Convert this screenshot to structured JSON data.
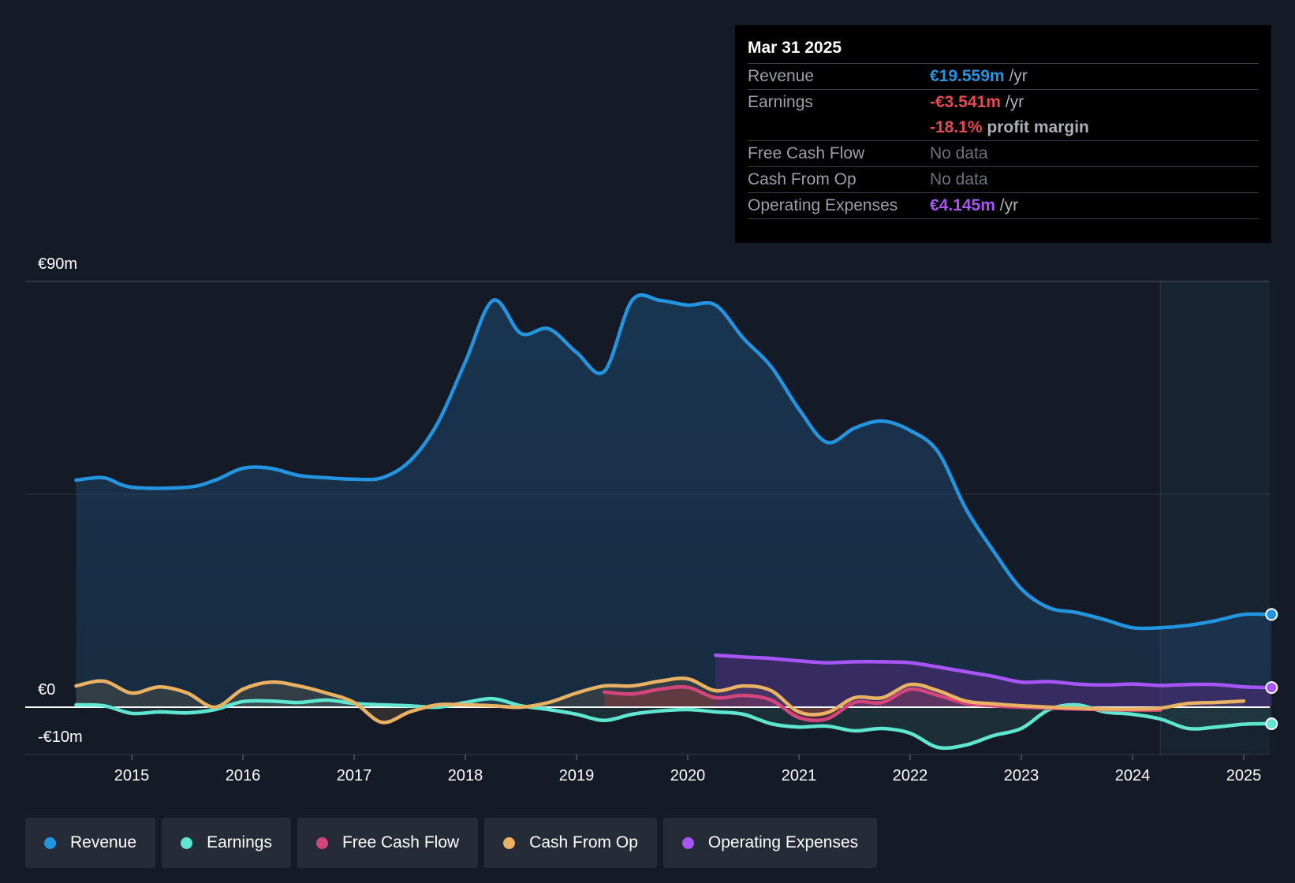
{
  "tooltip": {
    "date": "Mar 31 2025",
    "rows": [
      {
        "label": "Revenue",
        "value": "€19.559m",
        "unit": "/yr"
      },
      {
        "label": "Earnings",
        "value": "-€3.541m",
        "unit": "/yr"
      },
      {
        "label": "",
        "value": "-18.1%",
        "unit": "profit margin"
      },
      {
        "label": "Free Cash Flow",
        "value": "No data"
      },
      {
        "label": "Cash From Op",
        "value": "No data"
      },
      {
        "label": "Operating Expenses",
        "value": "€4.145m",
        "unit": "/yr"
      }
    ]
  },
  "legend": [
    {
      "label": "Revenue",
      "color": "#2394df"
    },
    {
      "label": "Earnings",
      "color": "#5ee6d0"
    },
    {
      "label": "Free Cash Flow",
      "color": "#d4457c"
    },
    {
      "label": "Cash From Op",
      "color": "#e9b262"
    },
    {
      "label": "Operating Expenses",
      "color": "#a855f7"
    }
  ],
  "chart_data": {
    "type": "area",
    "title": "",
    "y_tick_labels": {
      "top": "€90m",
      "zero": "€0",
      "bottom": "-€10m"
    },
    "ylim": [
      -10,
      90
    ],
    "xlim": [
      2014.0,
      2025.25
    ],
    "x_ticks": [
      2015,
      2016,
      2017,
      2018,
      2019,
      2020,
      2021,
      2022,
      2023,
      2024,
      2025
    ],
    "x_tick_labels": [
      "2015",
      "2016",
      "2017",
      "2018",
      "2019",
      "2020",
      "2021",
      "2022",
      "2023",
      "2024",
      "2025"
    ],
    "forecast_start": 2024.25,
    "series": [
      {
        "name": "Revenue",
        "color": "#2394df",
        "fill": true,
        "end_marker": true,
        "points": [
          [
            2014.5,
            48
          ],
          [
            2014.75,
            48.5
          ],
          [
            2015.0,
            46.5
          ],
          [
            2015.5,
            46.5
          ],
          [
            2015.75,
            48
          ],
          [
            2016.0,
            50.5
          ],
          [
            2016.25,
            50.5
          ],
          [
            2016.5,
            49
          ],
          [
            2016.75,
            48.5
          ],
          [
            2017.0,
            48.2
          ],
          [
            2017.25,
            48.5
          ],
          [
            2017.5,
            52
          ],
          [
            2017.75,
            60
          ],
          [
            2018.0,
            73
          ],
          [
            2018.25,
            86
          ],
          [
            2018.5,
            79
          ],
          [
            2018.75,
            80
          ],
          [
            2019.0,
            75
          ],
          [
            2019.25,
            71
          ],
          [
            2019.5,
            86
          ],
          [
            2019.75,
            86
          ],
          [
            2020.0,
            85
          ],
          [
            2020.25,
            85
          ],
          [
            2020.5,
            78
          ],
          [
            2020.75,
            72
          ],
          [
            2021.0,
            63
          ],
          [
            2021.25,
            56
          ],
          [
            2021.5,
            59
          ],
          [
            2021.75,
            60.5
          ],
          [
            2022.0,
            58.5
          ],
          [
            2022.25,
            54
          ],
          [
            2022.5,
            42
          ],
          [
            2022.75,
            33
          ],
          [
            2023.0,
            25
          ],
          [
            2023.25,
            21
          ],
          [
            2023.5,
            20
          ],
          [
            2023.75,
            18.5
          ],
          [
            2024.0,
            16.8
          ],
          [
            2024.25,
            16.8
          ],
          [
            2024.5,
            17.3
          ],
          [
            2024.75,
            18.3
          ],
          [
            2025.0,
            19.6
          ],
          [
            2025.25,
            19.6
          ]
        ]
      },
      {
        "name": "Earnings",
        "color": "#5ee6d0",
        "fill": true,
        "end_marker": true,
        "points": [
          [
            2014.5,
            0.5
          ],
          [
            2014.75,
            0.3
          ],
          [
            2015.0,
            -1.3
          ],
          [
            2015.25,
            -1.0
          ],
          [
            2015.5,
            -1.2
          ],
          [
            2015.75,
            -0.5
          ],
          [
            2016.0,
            1.2
          ],
          [
            2016.25,
            1.3
          ],
          [
            2016.5,
            1.0
          ],
          [
            2016.75,
            1.5
          ],
          [
            2017.0,
            0.8
          ],
          [
            2017.25,
            0.5
          ],
          [
            2017.5,
            0.3
          ],
          [
            2017.75,
            0.0
          ],
          [
            2018.0,
            1.0
          ],
          [
            2018.25,
            1.8
          ],
          [
            2018.5,
            0.3
          ],
          [
            2018.75,
            -0.5
          ],
          [
            2019.0,
            -1.5
          ],
          [
            2019.25,
            -2.8
          ],
          [
            2019.5,
            -1.5
          ],
          [
            2019.75,
            -0.8
          ],
          [
            2020.0,
            -0.5
          ],
          [
            2020.25,
            -1.0
          ],
          [
            2020.5,
            -1.5
          ],
          [
            2020.75,
            -3.5
          ],
          [
            2021.0,
            -4.2
          ],
          [
            2021.25,
            -4.0
          ],
          [
            2021.5,
            -5.0
          ],
          [
            2021.75,
            -4.5
          ],
          [
            2022.0,
            -5.5
          ],
          [
            2022.25,
            -8.5
          ],
          [
            2022.5,
            -8.0
          ],
          [
            2022.75,
            -6.0
          ],
          [
            2023.0,
            -4.5
          ],
          [
            2023.25,
            -0.5
          ],
          [
            2023.5,
            0.5
          ],
          [
            2023.75,
            -1.0
          ],
          [
            2024.0,
            -1.5
          ],
          [
            2024.25,
            -2.5
          ],
          [
            2024.5,
            -4.5
          ],
          [
            2024.75,
            -4.2
          ],
          [
            2025.0,
            -3.6
          ],
          [
            2025.25,
            -3.5
          ]
        ]
      },
      {
        "name": "Free Cash Flow",
        "color": "#d4457c",
        "fill": true,
        "end_marker": false,
        "points": [
          [
            2019.25,
            3.2
          ],
          [
            2019.5,
            2.8
          ],
          [
            2019.75,
            3.8
          ],
          [
            2020.0,
            4.2
          ],
          [
            2020.25,
            2.0
          ],
          [
            2020.5,
            2.5
          ],
          [
            2020.75,
            1.5
          ],
          [
            2021.0,
            -2.2
          ],
          [
            2021.25,
            -2.5
          ],
          [
            2021.5,
            1.0
          ],
          [
            2021.75,
            1.0
          ],
          [
            2022.0,
            3.8
          ],
          [
            2022.25,
            2.5
          ],
          [
            2022.5,
            0.8
          ],
          [
            2022.75,
            0.3
          ],
          [
            2023.0,
            0.0
          ],
          [
            2023.25,
            -0.2
          ],
          [
            2023.5,
            -0.4
          ],
          [
            2023.75,
            -0.5
          ],
          [
            2024.0,
            -0.6
          ],
          [
            2024.25,
            -0.6
          ]
        ]
      },
      {
        "name": "Cash From Op",
        "color": "#e9b262",
        "fill": true,
        "end_marker": false,
        "points": [
          [
            2014.5,
            4.5
          ],
          [
            2014.75,
            5.5
          ],
          [
            2015.0,
            3.0
          ],
          [
            2015.25,
            4.3
          ],
          [
            2015.5,
            3.0
          ],
          [
            2015.75,
            0.0
          ],
          [
            2016.0,
            3.8
          ],
          [
            2016.25,
            5.3
          ],
          [
            2016.5,
            4.5
          ],
          [
            2016.75,
            3.0
          ],
          [
            2017.0,
            1.0
          ],
          [
            2017.25,
            -3.2
          ],
          [
            2017.5,
            -1.0
          ],
          [
            2017.75,
            0.5
          ],
          [
            2018.0,
            0.5
          ],
          [
            2018.25,
            0.3
          ],
          [
            2018.5,
            0.0
          ],
          [
            2018.75,
            1.0
          ],
          [
            2019.0,
            3.0
          ],
          [
            2019.25,
            4.5
          ],
          [
            2019.5,
            4.5
          ],
          [
            2019.75,
            5.5
          ],
          [
            2020.0,
            6.0
          ],
          [
            2020.25,
            3.5
          ],
          [
            2020.5,
            4.5
          ],
          [
            2020.75,
            3.5
          ],
          [
            2021.0,
            -1.0
          ],
          [
            2021.25,
            -1.2
          ],
          [
            2021.5,
            2.0
          ],
          [
            2021.75,
            2.0
          ],
          [
            2022.0,
            4.8
          ],
          [
            2022.25,
            3.5
          ],
          [
            2022.5,
            1.3
          ],
          [
            2022.75,
            0.7
          ],
          [
            2023.0,
            0.3
          ],
          [
            2023.25,
            0.0
          ],
          [
            2023.5,
            -0.2
          ],
          [
            2023.75,
            -0.4
          ],
          [
            2024.0,
            -0.4
          ],
          [
            2024.25,
            -0.2
          ],
          [
            2024.5,
            0.8
          ],
          [
            2024.75,
            1.0
          ],
          [
            2025.0,
            1.3
          ]
        ]
      },
      {
        "name": "Operating Expenses",
        "color": "#a855f7",
        "fill": true,
        "end_marker": true,
        "points": [
          [
            2020.25,
            11.0
          ],
          [
            2020.5,
            10.6
          ],
          [
            2020.75,
            10.3
          ],
          [
            2021.0,
            9.8
          ],
          [
            2021.25,
            9.4
          ],
          [
            2021.5,
            9.6
          ],
          [
            2021.75,
            9.6
          ],
          [
            2022.0,
            9.4
          ],
          [
            2022.25,
            8.5
          ],
          [
            2022.5,
            7.5
          ],
          [
            2022.75,
            6.5
          ],
          [
            2023.0,
            5.3
          ],
          [
            2023.25,
            5.4
          ],
          [
            2023.5,
            4.9
          ],
          [
            2023.75,
            4.7
          ],
          [
            2024.0,
            4.9
          ],
          [
            2024.25,
            4.6
          ],
          [
            2024.5,
            4.8
          ],
          [
            2024.75,
            4.8
          ],
          [
            2025.0,
            4.3
          ],
          [
            2025.25,
            4.15
          ]
        ]
      }
    ]
  }
}
